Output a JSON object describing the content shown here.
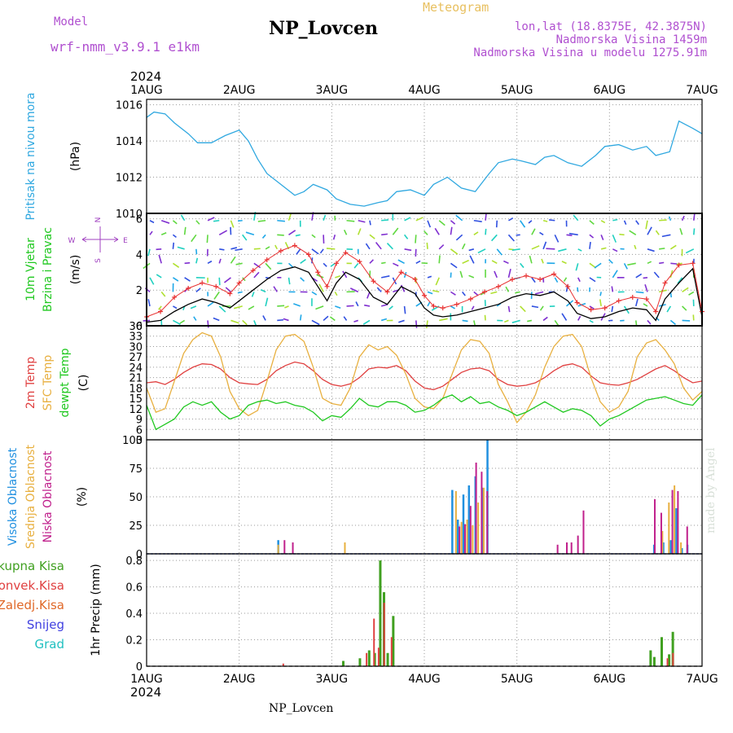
{
  "header": {
    "model_label": "Model",
    "model_name": "wrf-nmm_v3.9.1 e1km",
    "title": "NP_Lovcen",
    "meteogram_label": "Meteogram",
    "lonlat": "lon,lat (18.8375E, 42.3875N)",
    "altitude": "Nadmorska Visina 1459m",
    "model_altitude": "Nadmorska Visina u modelu 1275.91m",
    "bottom_title": "NP_Lovcen",
    "credit": "made by Angel"
  },
  "time_axis": {
    "year": "2024",
    "ticks": [
      "1AUG",
      "2AUG",
      "3AUG",
      "4AUG",
      "5AUG",
      "6AUG",
      "7AUG"
    ]
  },
  "colors": {
    "pressure": "#30a8e0",
    "wind_avg": "#000000",
    "wind_gust": "#e83030",
    "temp2m": "#e04040",
    "sfc_temp": "#e8b040",
    "dewpt": "#20c820",
    "high_cloud": "#2090e0",
    "mid_cloud": "#e8b040",
    "low_cloud": "#c0208c",
    "total_precip": "#40a020",
    "conv_precip": "#e04040",
    "strat_precip": "#e06828",
    "snow": "#4040e0",
    "graupel": "#20c0c0",
    "wind_legend": "#a040c0"
  },
  "panels": {
    "pressure": {
      "ylabel_parts": [
        "Pritisak na nivou mora",
        "(hPa)"
      ],
      "label_colors": [
        "#30a8e0",
        "#000000"
      ],
      "yticks": [
        "1010",
        "1012",
        "1014",
        "1016"
      ]
    },
    "wind": {
      "ylabel_parts": [
        "10m Vjetar",
        "Brzina i Pravac",
        "(m/s)"
      ],
      "label_colors": [
        "#20c820",
        "#20c820",
        "#000000"
      ],
      "yticks": [
        "0",
        "2",
        "4",
        "6"
      ],
      "compass": {
        "n": "N",
        "s": "S",
        "e": "E",
        "w": "W"
      }
    },
    "temp": {
      "ylabel_parts": [
        "2m Temp",
        "SFC Temp",
        "dewpt Temp",
        "(C)"
      ],
      "label_colors": [
        "#e04040",
        "#e8b040",
        "#20c820",
        "#000000"
      ],
      "yticks": [
        "3",
        "6",
        "9",
        "12",
        "15",
        "18",
        "21",
        "24",
        "27",
        "30",
        "33",
        "36"
      ]
    },
    "cloud": {
      "ylabel_parts": [
        "Visoka Oblacnost",
        "Srednja Oblacnost",
        "Niska Oblacnost",
        "(%)"
      ],
      "label_colors": [
        "#2090e0",
        "#e8b040",
        "#c0208c",
        "#000000"
      ],
      "yticks": [
        "0",
        "25",
        "50",
        "75",
        "100"
      ]
    },
    "precip": {
      "legend": [
        "Ukupna Kisa",
        "Konvek.Kisa",
        "Zaledj.Kisa",
        "Snijeg",
        "Grad"
      ],
      "legend_colors": [
        "#40a020",
        "#e04040",
        "#e06828",
        "#4040e0",
        "#20c0c0"
      ],
      "ylabel": "1hr Precip (mm)",
      "yticks": [
        "0",
        "0.2",
        "0.4",
        "0.6",
        "0.8"
      ]
    }
  },
  "chart_data": [
    {
      "type": "line",
      "panel": "pressure",
      "x_unit": "days since 1AUG 00UTC",
      "xlim": [
        0,
        6
      ],
      "ylim": [
        1010,
        1016.3
      ],
      "series": [
        {
          "name": "Pritisak na nivou mora",
          "x": [
            0,
            0.08,
            0.2,
            0.3,
            0.45,
            0.55,
            0.7,
            0.85,
            1.0,
            1.1,
            1.2,
            1.3,
            1.45,
            1.6,
            1.7,
            1.8,
            1.95,
            2.05,
            2.2,
            2.35,
            2.5,
            2.6,
            2.7,
            2.85,
            3.0,
            3.1,
            3.25,
            3.4,
            3.55,
            3.7,
            3.8,
            3.95,
            4.05,
            4.2,
            4.3,
            4.4,
            4.55,
            4.7,
            4.85,
            4.95,
            5.1,
            5.25,
            5.4,
            5.5,
            5.65,
            5.75,
            5.9,
            6.0
          ],
          "y": [
            1015.3,
            1015.6,
            1015.5,
            1015.0,
            1014.4,
            1013.9,
            1013.9,
            1014.3,
            1014.6,
            1014.0,
            1013.0,
            1012.2,
            1011.6,
            1011.0,
            1011.2,
            1011.6,
            1011.3,
            1010.8,
            1010.5,
            1010.4,
            1010.6,
            1010.7,
            1011.2,
            1011.3,
            1011.0,
            1011.6,
            1012.0,
            1011.4,
            1011.2,
            1012.2,
            1012.8,
            1013.0,
            1012.9,
            1012.7,
            1013.1,
            1013.2,
            1012.8,
            1012.6,
            1013.2,
            1013.7,
            1013.8,
            1013.5,
            1013.7,
            1013.2,
            1013.4,
            1015.1,
            1014.7,
            1014.4
          ]
        }
      ]
    },
    {
      "type": "line",
      "panel": "wind",
      "x_unit": "days since 1AUG 00UTC",
      "xlim": [
        0,
        6
      ],
      "ylim": [
        0,
        6.3
      ],
      "series": [
        {
          "name": "avg",
          "x": [
            0,
            0.15,
            0.3,
            0.45,
            0.6,
            0.75,
            0.9,
            1.0,
            1.15,
            1.3,
            1.45,
            1.6,
            1.75,
            1.85,
            1.95,
            2.05,
            2.15,
            2.3,
            2.45,
            2.6,
            2.75,
            2.9,
            3.0,
            3.1,
            3.2,
            3.35,
            3.5,
            3.65,
            3.8,
            3.95,
            4.1,
            4.25,
            4.4,
            4.55,
            4.65,
            4.8,
            4.95,
            5.1,
            5.25,
            5.4,
            5.5,
            5.6,
            5.75,
            5.9,
            6.0
          ],
          "y": [
            0.2,
            0.3,
            0.8,
            1.2,
            1.5,
            1.3,
            1.0,
            1.4,
            2.0,
            2.6,
            3.1,
            3.3,
            3.0,
            2.2,
            1.4,
            2.4,
            3.0,
            2.6,
            1.6,
            1.2,
            2.2,
            1.8,
            1.0,
            0.6,
            0.5,
            0.6,
            0.8,
            1.0,
            1.2,
            1.6,
            1.8,
            1.7,
            1.9,
            1.4,
            0.7,
            0.4,
            0.5,
            0.8,
            1.0,
            0.9,
            0.3,
            1.5,
            2.4,
            3.2,
            0.5
          ]
        },
        {
          "name": "gust",
          "x": [
            0,
            0.15,
            0.3,
            0.45,
            0.6,
            0.75,
            0.9,
            1.0,
            1.15,
            1.3,
            1.45,
            1.6,
            1.75,
            1.85,
            1.95,
            2.05,
            2.15,
            2.3,
            2.45,
            2.6,
            2.75,
            2.9,
            3.0,
            3.1,
            3.2,
            3.35,
            3.5,
            3.65,
            3.8,
            3.95,
            4.1,
            4.25,
            4.4,
            4.55,
            4.65,
            4.8,
            4.95,
            5.1,
            5.25,
            5.4,
            5.5,
            5.6,
            5.75,
            5.9,
            6.0
          ],
          "y": [
            0.5,
            0.8,
            1.6,
            2.1,
            2.4,
            2.2,
            1.8,
            2.4,
            3.1,
            3.7,
            4.2,
            4.5,
            4.0,
            3.0,
            2.2,
            3.5,
            4.1,
            3.6,
            2.5,
            1.9,
            3.0,
            2.6,
            1.7,
            1.1,
            1.0,
            1.2,
            1.5,
            1.9,
            2.2,
            2.6,
            2.8,
            2.6,
            2.9,
            2.2,
            1.3,
            0.9,
            1.0,
            1.4,
            1.6,
            1.5,
            0.8,
            2.4,
            3.4,
            3.5,
            0.8
          ]
        }
      ]
    },
    {
      "type": "line",
      "panel": "temp",
      "x_unit": "days since 1AUG 00UTC",
      "xlim": [
        0,
        6
      ],
      "ylim": [
        3,
        36
      ],
      "series": [
        {
          "name": "2m Temp",
          "x": [
            0,
            0.1,
            0.2,
            0.3,
            0.4,
            0.5,
            0.6,
            0.7,
            0.8,
            0.9,
            1.0,
            1.1,
            1.2,
            1.3,
            1.4,
            1.5,
            1.6,
            1.7,
            1.8,
            1.9,
            2.0,
            2.1,
            2.2,
            2.3,
            2.4,
            2.5,
            2.6,
            2.7,
            2.8,
            2.9,
            3.0,
            3.1,
            3.2,
            3.3,
            3.4,
            3.5,
            3.6,
            3.7,
            3.8,
            3.9,
            4.0,
            4.1,
            4.2,
            4.3,
            4.4,
            4.5,
            4.6,
            4.7,
            4.8,
            4.9,
            5.0,
            5.1,
            5.2,
            5.3,
            5.4,
            5.5,
            5.6,
            5.7,
            5.8,
            5.9,
            6.0
          ],
          "y": [
            19.5,
            19.8,
            19.0,
            20.5,
            22.5,
            24.0,
            25.0,
            24.8,
            23.5,
            21.0,
            19.5,
            19.2,
            19.0,
            20.5,
            23.0,
            24.5,
            25.5,
            25.0,
            23.0,
            20.5,
            19.0,
            18.5,
            19.2,
            21.0,
            23.5,
            24.0,
            23.8,
            24.5,
            23.0,
            20.0,
            18.0,
            17.5,
            18.5,
            20.5,
            22.5,
            23.5,
            23.8,
            23.0,
            20.5,
            19.0,
            18.5,
            18.8,
            19.5,
            21.0,
            23.0,
            24.5,
            25.0,
            24.0,
            21.5,
            19.5,
            19.0,
            18.8,
            19.5,
            20.5,
            22.0,
            23.5,
            24.5,
            23.0,
            21.0,
            19.5,
            20.0
          ]
        },
        {
          "name": "SFC Temp",
          "x": [
            0,
            0.1,
            0.2,
            0.3,
            0.4,
            0.5,
            0.6,
            0.7,
            0.8,
            0.9,
            1.0,
            1.1,
            1.2,
            1.3,
            1.4,
            1.5,
            1.6,
            1.7,
            1.8,
            1.9,
            2.0,
            2.1,
            2.2,
            2.3,
            2.4,
            2.5,
            2.6,
            2.7,
            2.8,
            2.9,
            3.0,
            3.1,
            3.2,
            3.3,
            3.4,
            3.5,
            3.6,
            3.7,
            3.8,
            3.9,
            4.0,
            4.1,
            4.2,
            4.3,
            4.4,
            4.5,
            4.6,
            4.7,
            4.8,
            4.9,
            5.0,
            5.1,
            5.2,
            5.3,
            5.4,
            5.5,
            5.6,
            5.7,
            5.8,
            5.9,
            6.0
          ],
          "y": [
            18.0,
            11.0,
            12.0,
            20.0,
            28.0,
            32.0,
            34.0,
            33.0,
            27.0,
            17.0,
            12.0,
            10.0,
            11.5,
            20.0,
            29.0,
            33.0,
            33.5,
            31.5,
            24.0,
            15.0,
            13.5,
            13.0,
            18.0,
            27.0,
            30.5,
            29.0,
            30.0,
            27.5,
            22.0,
            15.0,
            12.5,
            12.0,
            15.0,
            22.0,
            29.0,
            32.0,
            31.5,
            28.0,
            19.0,
            14.0,
            8.0,
            11.0,
            16.0,
            24.0,
            30.0,
            33.0,
            33.5,
            30.0,
            21.0,
            14.0,
            11.0,
            12.5,
            17.0,
            27.0,
            31.0,
            32.0,
            29.0,
            25.0,
            18.0,
            14.5,
            17.0
          ]
        },
        {
          "name": "dewpt Temp",
          "x": [
            0,
            0.1,
            0.2,
            0.3,
            0.4,
            0.5,
            0.6,
            0.7,
            0.8,
            0.9,
            1.0,
            1.1,
            1.2,
            1.3,
            1.4,
            1.5,
            1.6,
            1.7,
            1.8,
            1.9,
            2.0,
            2.1,
            2.2,
            2.3,
            2.4,
            2.5,
            2.6,
            2.7,
            2.8,
            2.9,
            3.0,
            3.1,
            3.2,
            3.3,
            3.4,
            3.5,
            3.6,
            3.7,
            3.8,
            3.9,
            4.0,
            4.1,
            4.2,
            4.3,
            4.4,
            4.5,
            4.6,
            4.7,
            4.8,
            4.9,
            5.0,
            5.1,
            5.2,
            5.3,
            5.4,
            5.5,
            5.6,
            5.7,
            5.8,
            5.9,
            6.0
          ],
          "y": [
            13.0,
            6.0,
            7.5,
            9.0,
            12.5,
            14.0,
            13.0,
            14.0,
            11.0,
            9.0,
            10.0,
            13.0,
            14.0,
            14.5,
            13.5,
            14.0,
            13.0,
            12.5,
            11.0,
            8.5,
            10.0,
            9.5,
            12.0,
            15.0,
            13.0,
            12.5,
            14.0,
            14.0,
            13.0,
            11.0,
            11.5,
            13.0,
            15.0,
            16.0,
            14.0,
            15.5,
            13.5,
            14.0,
            12.5,
            11.5,
            10.0,
            11.0,
            12.5,
            14.0,
            12.5,
            11.0,
            12.0,
            11.5,
            10.0,
            7.0,
            9.0,
            10.0,
            11.5,
            13.0,
            14.5,
            15.0,
            15.5,
            14.5,
            13.5,
            13.0,
            16.0
          ]
        }
      ]
    },
    {
      "type": "bar",
      "panel": "cloud",
      "x_unit": "days since 1AUG 00UTC",
      "xlim": [
        0,
        6
      ],
      "ylim": [
        0,
        100
      ],
      "series": [
        {
          "name": "Visoka Oblacnost",
          "x": [
            1.42,
            3.3,
            3.36,
            3.42,
            3.48,
            3.55,
            3.62,
            3.68,
            5.48,
            5.58,
            5.66,
            5.72,
            5.78,
            5.84
          ],
          "y": [
            12,
            56,
            30,
            52,
            60,
            68,
            58,
            100,
            8,
            10,
            12,
            40,
            5,
            8
          ]
        },
        {
          "name": "Srednja Oblacnost",
          "x": [
            1.4,
            2.12,
            3.32,
            3.38,
            3.44,
            3.5,
            3.56,
            3.62,
            5.55,
            5.62,
            5.68,
            5.75
          ],
          "y": [
            8,
            10,
            55,
            28,
            30,
            25,
            45,
            58,
            20,
            45,
            60,
            10
          ]
        },
        {
          "name": "Niska Oblacnost",
          "x": [
            1.45,
            1.54,
            3.34,
            3.4,
            3.46,
            3.52,
            3.58,
            3.64,
            4.4,
            4.5,
            4.55,
            4.62,
            4.68,
            5.45,
            5.52,
            5.64,
            5.7,
            5.8
          ],
          "y": [
            12,
            10,
            24,
            26,
            42,
            80,
            72,
            55,
            8,
            10,
            10,
            16,
            38,
            48,
            36,
            56,
            55,
            24
          ]
        }
      ]
    },
    {
      "type": "bar",
      "panel": "precip",
      "x_unit": "days since 1AUG 00UTC",
      "xlim": [
        0,
        6
      ],
      "ylim": [
        0,
        0.85
      ],
      "series": [
        {
          "name": "Ukupna Kisa",
          "x": [
            2.12,
            2.3,
            2.4,
            2.46,
            2.52,
            2.56,
            2.6,
            2.66,
            5.44,
            5.48,
            5.56,
            5.64,
            5.68
          ],
          "y": [
            0.04,
            0.06,
            0.12,
            0.1,
            0.8,
            0.56,
            0.1,
            0.38,
            0.12,
            0.07,
            0.22,
            0.09,
            0.26
          ]
        },
        {
          "name": "Konvek.Kisa",
          "x": [
            1.45,
            2.35,
            2.43,
            2.48,
            2.54,
            2.62,
            5.6,
            5.66
          ],
          "y": [
            0.02,
            0.1,
            0.36,
            0.14,
            0.48,
            0.22,
            0.06,
            0.1
          ]
        }
      ]
    }
  ]
}
